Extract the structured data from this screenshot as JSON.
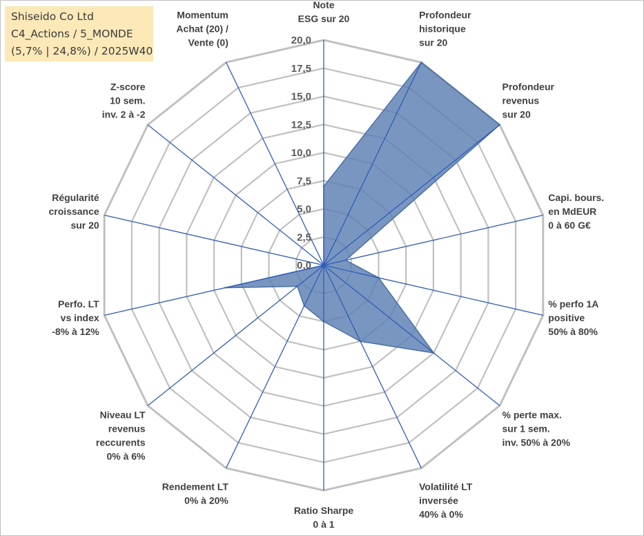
{
  "info": {
    "line1": "Shiseido Co Ltd",
    "line2": "C4_Actions / 5_MONDE",
    "line3": "(5,7% | 24,8%) / 2025W40"
  },
  "chart_data": {
    "type": "radar",
    "r_range": [
      0,
      20
    ],
    "ticks": [
      "0,0",
      "2,5",
      "5,0",
      "7,5",
      "10,0",
      "12,5",
      "15,0",
      "17,5",
      "20,0"
    ],
    "tick_values": [
      0,
      2.5,
      5,
      7.5,
      10,
      12.5,
      15,
      17.5,
      20
    ],
    "grid": true,
    "categories": [
      [
        "Note",
        "ESG sur 20"
      ],
      [
        "Profondeur",
        "historique",
        "sur 20"
      ],
      [
        "Profondeur",
        "revenus",
        "sur 20"
      ],
      [
        "Capi. bours.",
        "en MdEUR",
        "0 à 60 G€"
      ],
      [
        "% perfo 1A",
        "positive",
        "50% à 80%"
      ],
      [
        "% perte max.",
        "sur 1 sem.",
        "inv. 50% à 20%"
      ],
      [
        "Volatilité LT",
        "inversée",
        "40% à 0%"
      ],
      [
        "Ratio Sharpe",
        "0 à 1"
      ],
      [
        "Rendement LT",
        "0% à 20%"
      ],
      [
        "Niveau LT",
        "revenus",
        "reccurents",
        "0% à 6%"
      ],
      [
        "Perfo. LT",
        "vs index",
        "-8% à 12%"
      ],
      [
        "Régularité",
        "croissance",
        "sur 20"
      ],
      [
        "Z-score",
        "10 sem.",
        "inv. 2 à -2"
      ],
      [
        "Momentum",
        "Achat (20) /",
        "Vente (0)"
      ]
    ],
    "values": [
      7,
      20,
      20,
      2,
      5,
      12.5,
      7.5,
      5,
      4,
      3,
      9,
      0,
      0,
      0
    ],
    "colors": {
      "fill": "#5b7fb3",
      "stroke": "#4a6fa5",
      "grid": "#c0c0c0",
      "axis": "#2e5cb8"
    }
  }
}
